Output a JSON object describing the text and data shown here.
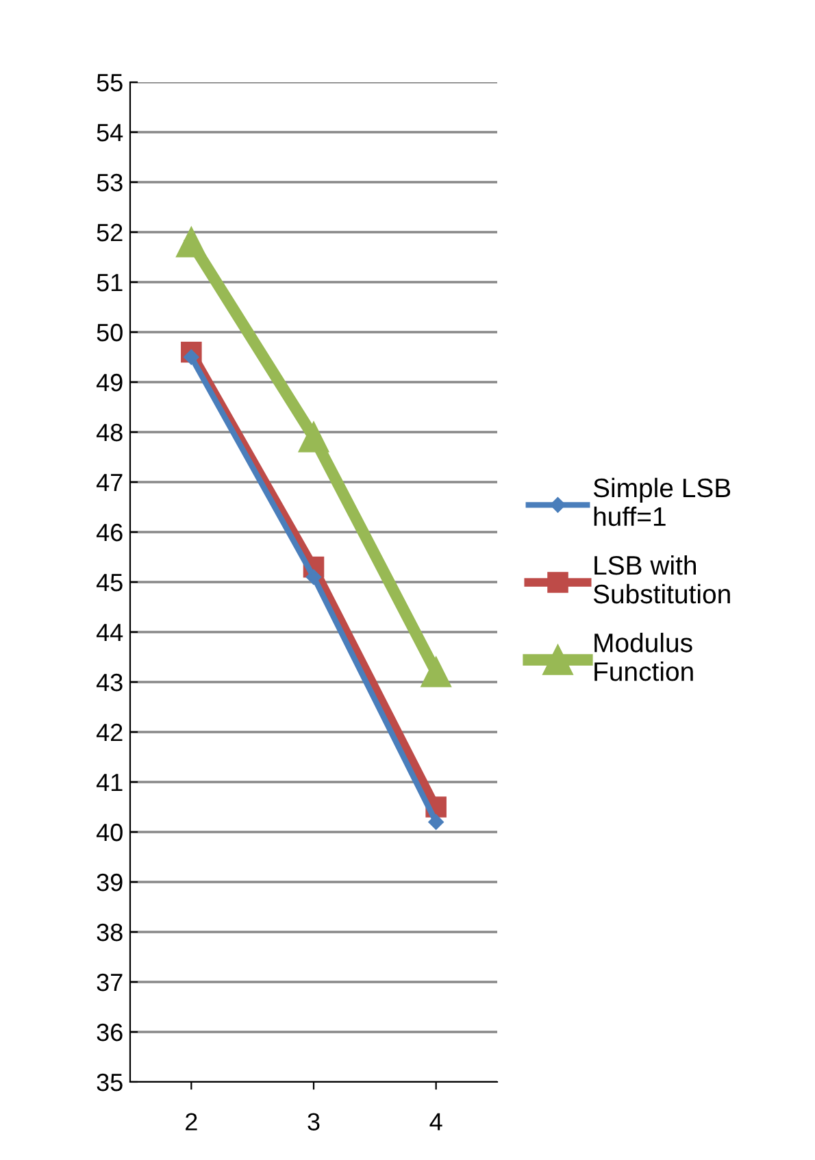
{
  "chart_data": {
    "type": "line",
    "categories": [
      "2",
      "3",
      "4"
    ],
    "series": [
      {
        "name": "Simple LSB\nhuff=1",
        "color": "#4a7ebb",
        "marker": "diamond",
        "values": [
          49.5,
          45.1,
          40.2
        ]
      },
      {
        "name": "LSB with\nSubstitution",
        "color": "#be4b48",
        "marker": "square",
        "values": [
          49.6,
          45.3,
          40.5
        ]
      },
      {
        "name": "Modulus\nFunction",
        "color": "#98b954",
        "marker": "triangle",
        "values": [
          51.8,
          47.9,
          43.2
        ]
      }
    ],
    "ylim": [
      35,
      55
    ],
    "yticks": [
      35,
      36,
      37,
      38,
      39,
      40,
      41,
      42,
      43,
      44,
      45,
      46,
      47,
      48,
      49,
      50,
      51,
      52,
      53,
      54,
      55
    ],
    "grid": "y",
    "legend": "right",
    "line_style": "solid"
  }
}
